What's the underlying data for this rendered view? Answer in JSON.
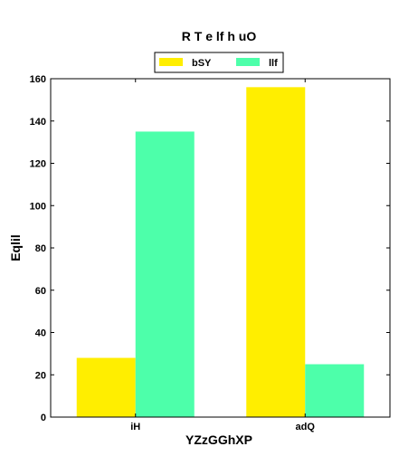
{
  "chart_data": {
    "type": "bar",
    "title": "R  T e lf h uO",
    "xlabel": "YZzGGhXP",
    "ylabel": "Eqlil",
    "categories": [
      "iH",
      "adQ"
    ],
    "series": [
      {
        "name": "bSY",
        "values": [
          28,
          156
        ],
        "color": "#ffee00"
      },
      {
        "name": "llf",
        "values": [
          135,
          25
        ],
        "color": "#4dffaa"
      }
    ],
    "ylim": [
      0,
      160
    ],
    "yticks": [
      0,
      20,
      40,
      60,
      80,
      100,
      120,
      140,
      160
    ],
    "grid": false,
    "legend_position": "top-center"
  }
}
